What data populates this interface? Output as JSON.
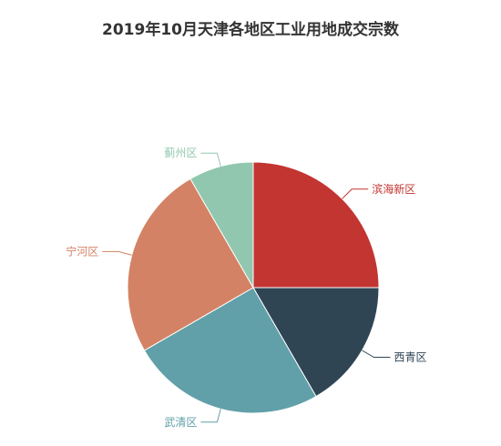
{
  "chart_data": {
    "type": "pie",
    "title": "2019年10月天津各地区工业用地成交宗数",
    "slices": [
      {
        "label": "滨海新区",
        "value": 3,
        "color": "#c23531"
      },
      {
        "label": "西青区",
        "value": 2,
        "color": "#2f4554"
      },
      {
        "label": "武清区",
        "value": 3,
        "color": "#61a0a8"
      },
      {
        "label": "宁河区",
        "value": 3,
        "color": "#d48265"
      },
      {
        "label": "蓟州区",
        "value": 1,
        "color": "#91c7ae"
      }
    ]
  }
}
